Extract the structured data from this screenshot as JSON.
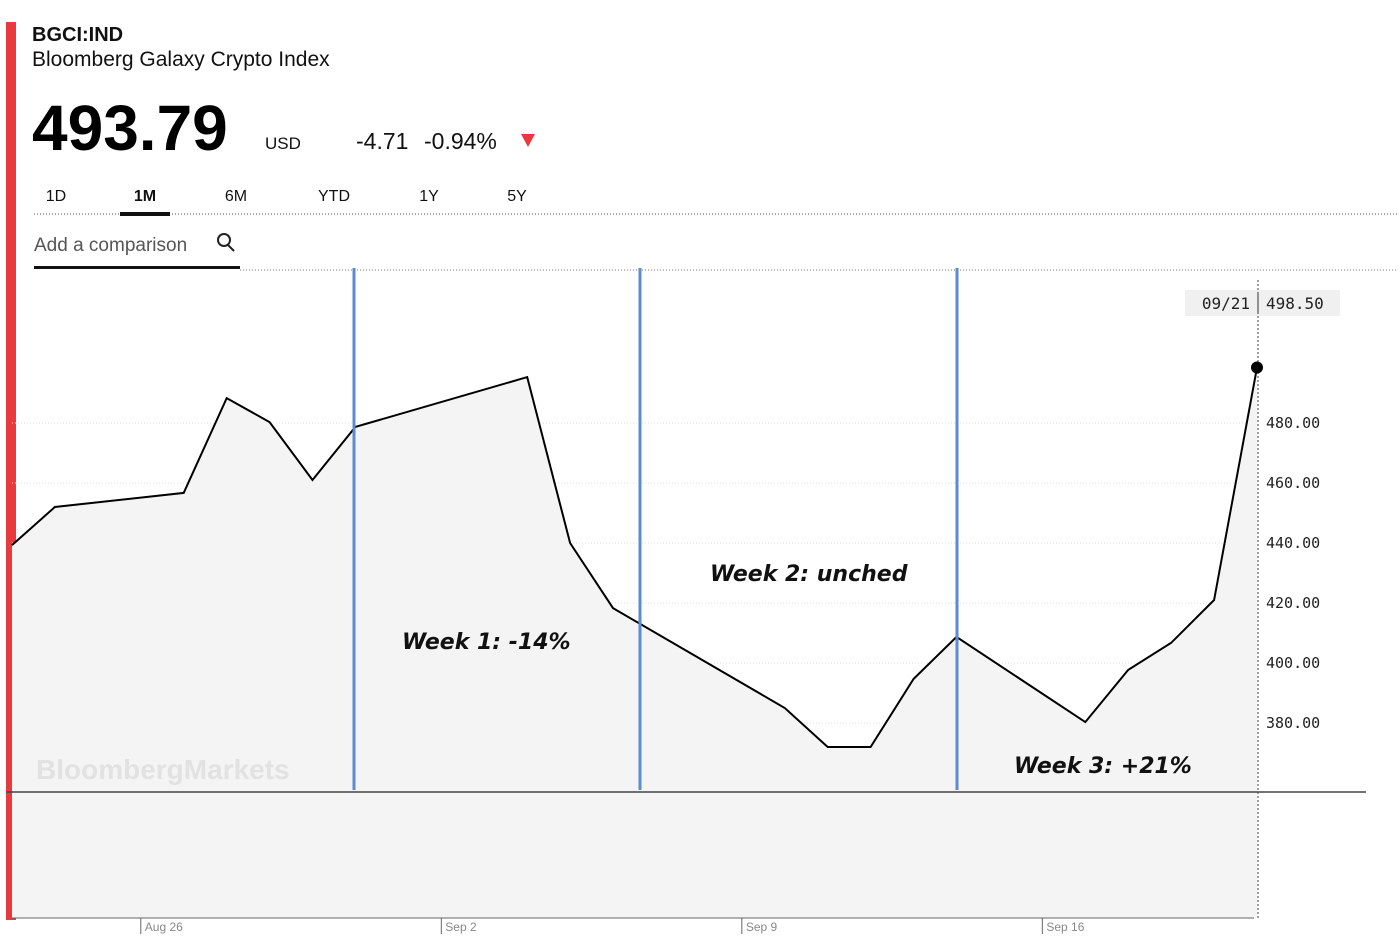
{
  "header": {
    "symbol": "BGCI:IND",
    "name": "Bloomberg Galaxy Crypto Index",
    "price": "493.79",
    "currency": "USD",
    "change": "-4.71",
    "change_percent": "-0.94%"
  },
  "tabs": [
    "1D",
    "1M",
    "6M",
    "YTD",
    "1Y",
    "5Y"
  ],
  "comparison_placeholder": "Add a comparison",
  "watermark": "BloombergMarkets",
  "chart_data": {
    "type": "area",
    "x": [
      -3,
      -2,
      1,
      2,
      3,
      4,
      5,
      9,
      10,
      11,
      15,
      16,
      17,
      18,
      19,
      22,
      23,
      24,
      25,
      26
    ],
    "values": [
      439.3,
      452,
      456.7,
      488.3,
      480.3,
      461,
      478.7,
      495.3,
      440,
      418.3,
      385,
      372,
      372,
      394.7,
      408.7,
      380.3,
      397.7,
      406.7,
      421,
      498.5
    ],
    "xlim": [
      -3,
      26
    ],
    "xticks": [
      {
        "value": 0,
        "label": "Aug 26"
      },
      {
        "value": 7,
        "label": "Sep 2"
      },
      {
        "value": 14,
        "label": "Sep 9"
      },
      {
        "value": 21,
        "label": "Sep 16"
      }
    ],
    "ylim": [
      357,
      531
    ],
    "yticks": [
      {
        "value": 380,
        "label": "380.00"
      },
      {
        "value": 400,
        "label": "400.00"
      },
      {
        "value": 420,
        "label": "420.00"
      },
      {
        "value": 440,
        "label": "440.00"
      },
      {
        "value": 460,
        "label": "460.00"
      },
      {
        "value": 480,
        "label": "480.00"
      }
    ],
    "grid": true,
    "color": "#000000",
    "last_date": "09/21",
    "last_value_label": "498.50",
    "annotations": [
      "Week 1: -14%",
      "Week 2: unched",
      "Week 3: +21%"
    ]
  }
}
